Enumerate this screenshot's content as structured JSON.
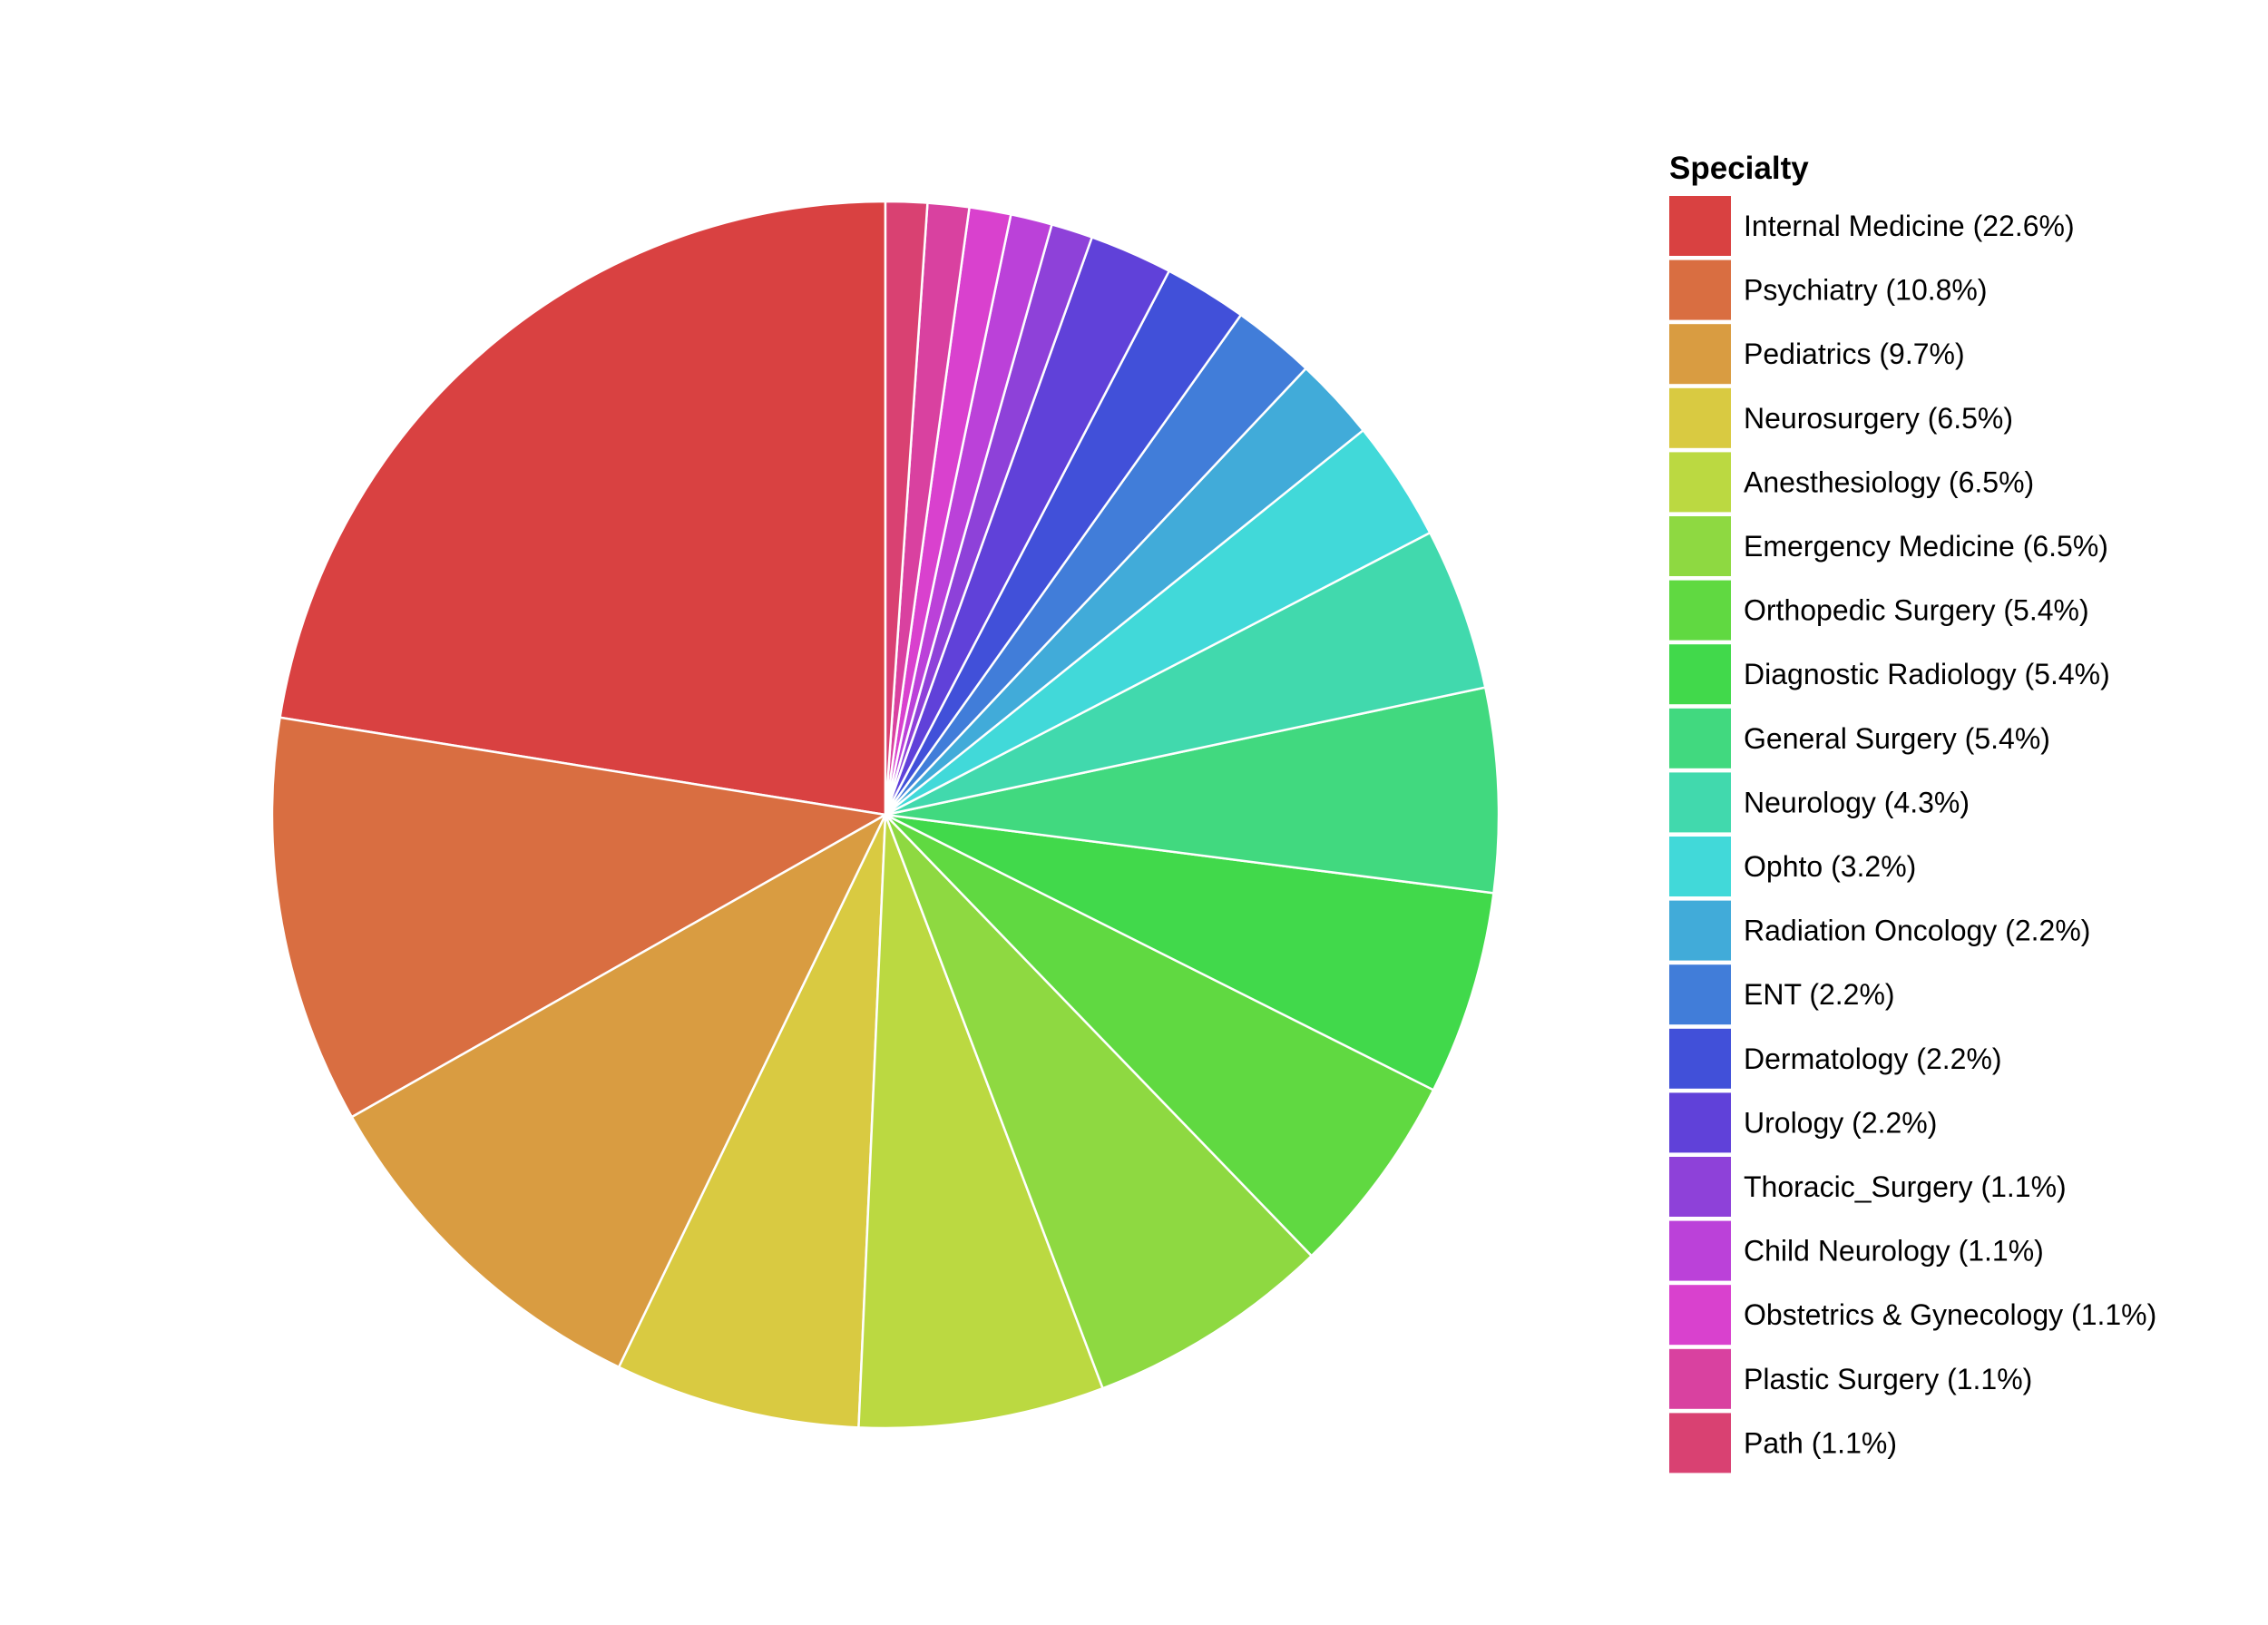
{
  "chart_data": {
    "type": "pie",
    "legend_title": "Specialty",
    "legend_position": "right",
    "start_angle": "top",
    "direction": "counterclockwise",
    "slices": [
      {
        "label": "Internal Medicine (22.6%)",
        "value": 22.6,
        "color": "#D94141"
      },
      {
        "label": "Psychiatry (10.8%)",
        "value": 10.8,
        "color": "#D96E41"
      },
      {
        "label": "Pediatrics (9.7%)",
        "value": 9.7,
        "color": "#D99C41"
      },
      {
        "label": "Neurosurgery (6.5%)",
        "value": 6.5,
        "color": "#D9CA41"
      },
      {
        "label": "Anesthesiology (6.5%)",
        "value": 6.5,
        "color": "#BBD941"
      },
      {
        "label": "Emergency Medicine (6.5%)",
        "value": 6.5,
        "color": "#8ED941"
      },
      {
        "label": "Orthopedic Surgery (5.4%)",
        "value": 5.4,
        "color": "#60D941"
      },
      {
        "label": "Diagnostic Radiology (5.4%)",
        "value": 5.4,
        "color": "#41D94B"
      },
      {
        "label": "General Surgery (5.4%)",
        "value": 5.4,
        "color": "#41D97F"
      },
      {
        "label": "Neurology (4.3%)",
        "value": 4.3,
        "color": "#41D9AD"
      },
      {
        "label": "Ophto (3.2%)",
        "value": 3.2,
        "color": "#41D9D9"
      },
      {
        "label": "Radiation Oncology (2.2%)",
        "value": 2.2,
        "color": "#41ABD9"
      },
      {
        "label": "ENT (2.2%)",
        "value": 2.2,
        "color": "#417DD9"
      },
      {
        "label": "Dermatology (2.2%)",
        "value": 2.2,
        "color": "#4150D9"
      },
      {
        "label": "Urology (2.2%)",
        "value": 2.2,
        "color": "#6041D9"
      },
      {
        "label": "Thoracic_Surgery (1.1%)",
        "value": 1.1,
        "color": "#8E41D9"
      },
      {
        "label": "Child Neurology (1.1%)",
        "value": 1.1,
        "color": "#BB41D9"
      },
      {
        "label": "Obstetrics & Gynecology (1.1%)",
        "value": 1.1,
        "color": "#D941CE"
      },
      {
        "label": "Plastic Surgery (1.1%)",
        "value": 1.1,
        "color": "#D941A0"
      },
      {
        "label": "Path (1.1%)",
        "value": 1.1,
        "color": "#D94172"
      }
    ]
  }
}
